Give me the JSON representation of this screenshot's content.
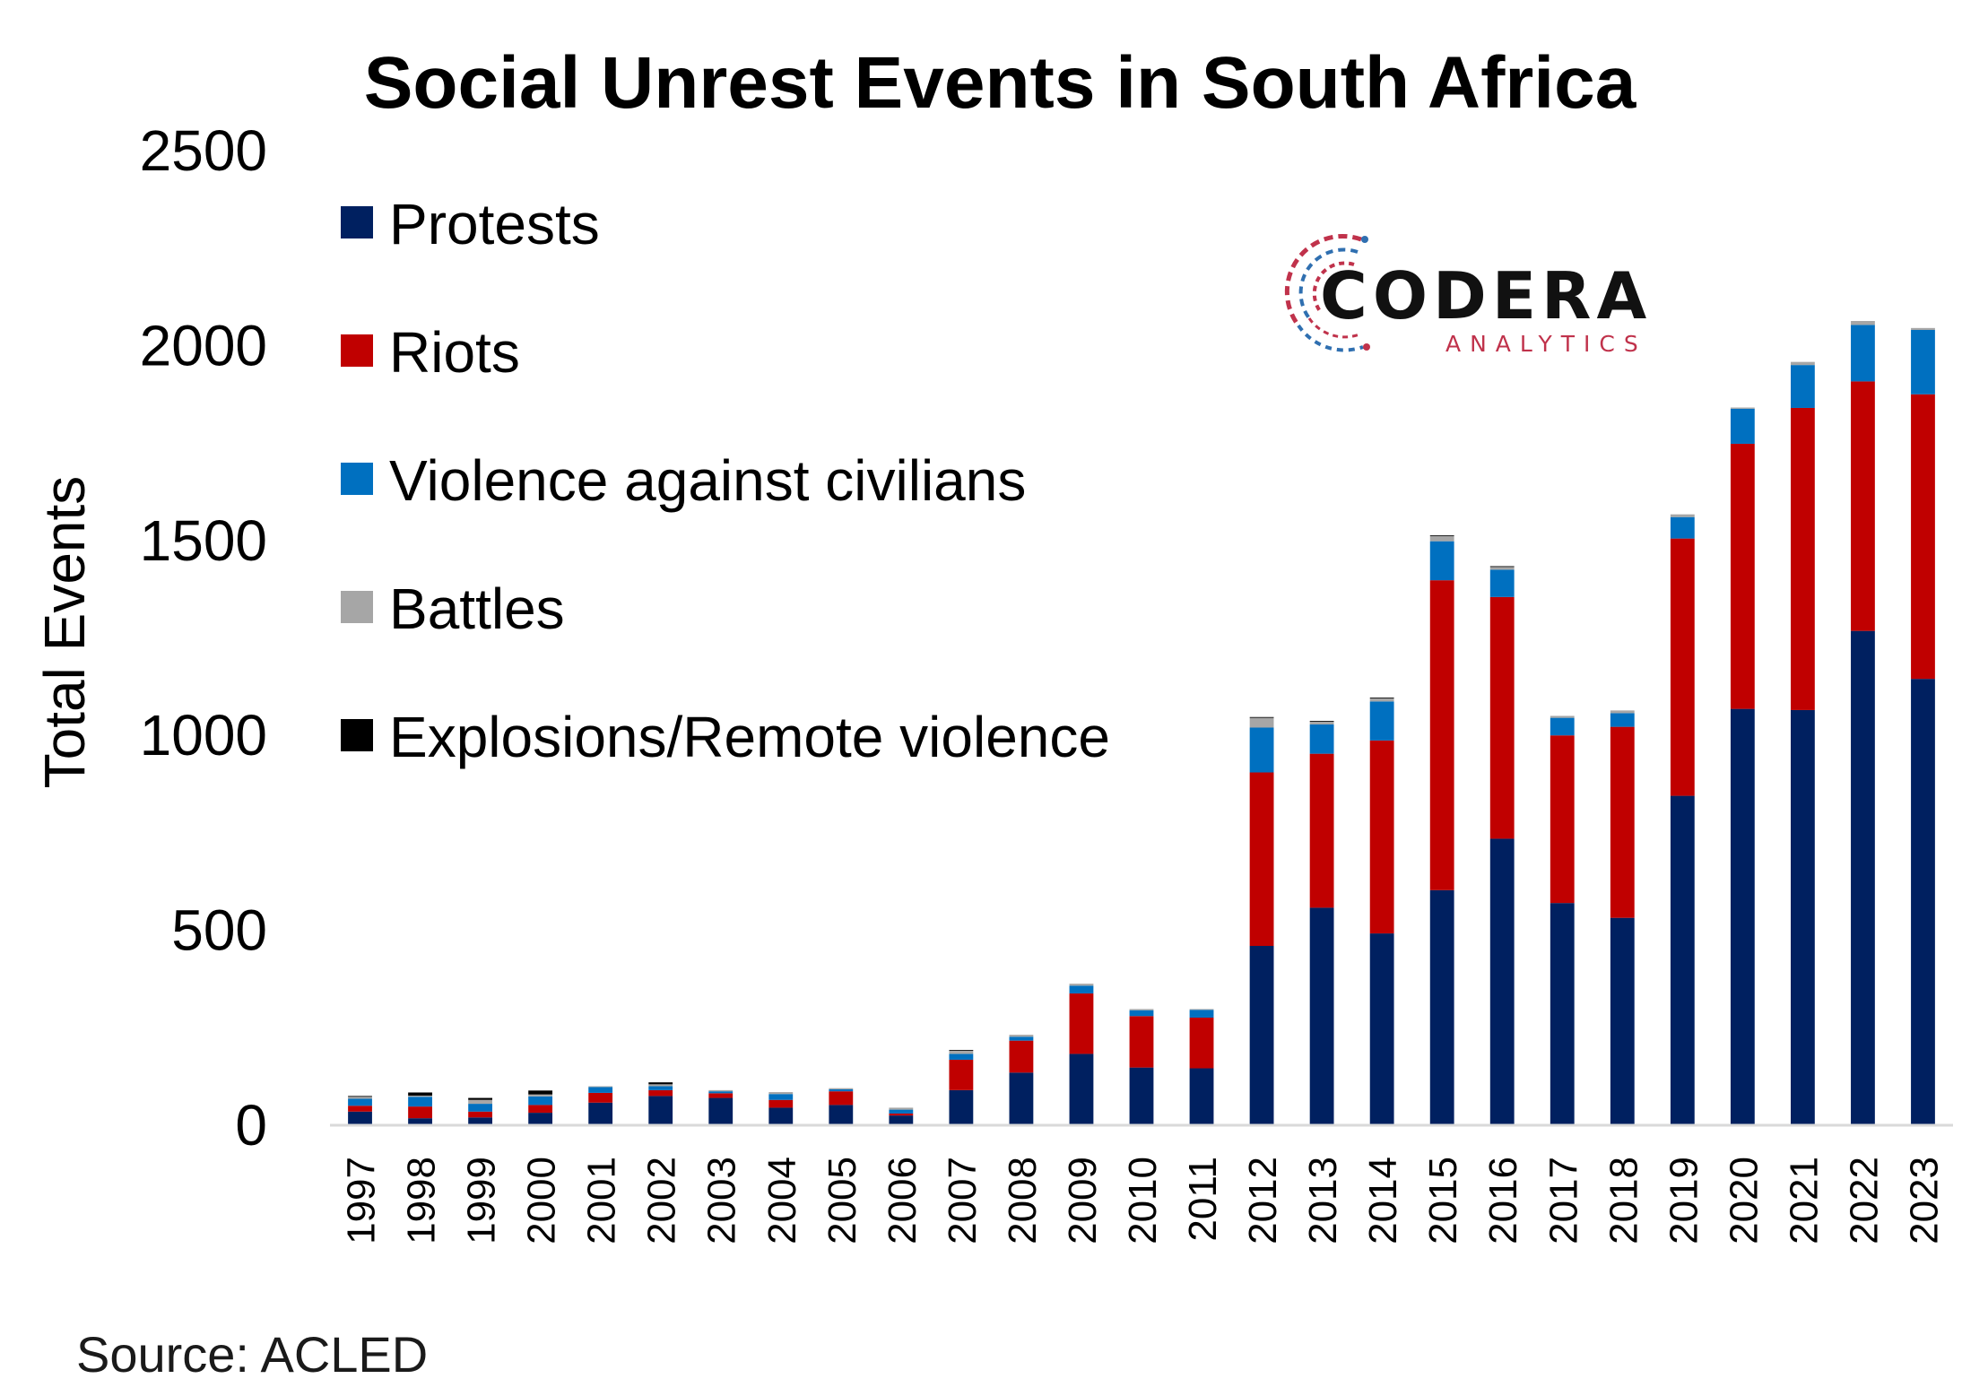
{
  "chart_data": {
    "type": "bar",
    "stacked": true,
    "title": "Social Unrest Events in South Africa",
    "ylabel": "Total Events",
    "xlabel": "",
    "ylim": [
      0,
      2500
    ],
    "yticks": [
      "0",
      "500",
      "1000",
      "1500",
      "2000",
      "2500"
    ],
    "ytick_values": [
      0,
      500,
      1000,
      1500,
      2000,
      2500
    ],
    "categories": [
      "1997",
      "1998",
      "1999",
      "2000",
      "2001",
      "2002",
      "2003",
      "2004",
      "2005",
      "2006",
      "2007",
      "2008",
      "2009",
      "2010",
      "2011",
      "2012",
      "2013",
      "2014",
      "2015",
      "2016",
      "2017",
      "2018",
      "2019",
      "2020",
      "2021",
      "2022",
      "2023"
    ],
    "series": [
      {
        "name": "Protests",
        "color": "#002060",
        "values": [
          35,
          18,
          20,
          32,
          58,
          75,
          70,
          45,
          52,
          25,
          90,
          135,
          183,
          148,
          146,
          460,
          558,
          492,
          603,
          735,
          570,
          532,
          845,
          1068,
          1065,
          1268,
          1145
        ]
      },
      {
        "name": "Riots",
        "color": "#C00000",
        "values": [
          15,
          30,
          15,
          20,
          25,
          15,
          12,
          20,
          35,
          5,
          78,
          82,
          155,
          132,
          130,
          445,
          395,
          495,
          795,
          620,
          430,
          490,
          660,
          680,
          775,
          640,
          730
        ]
      },
      {
        "name": "Violence against civilians",
        "color": "#0070C0",
        "values": [
          18,
          25,
          20,
          22,
          15,
          10,
          5,
          15,
          5,
          10,
          15,
          10,
          20,
          15,
          20,
          115,
          75,
          100,
          100,
          70,
          45,
          35,
          55,
          90,
          110,
          145,
          165
        ]
      },
      {
        "name": "Battles",
        "color": "#A6A6A6",
        "values": [
          5,
          3,
          10,
          5,
          2,
          5,
          3,
          5,
          3,
          5,
          8,
          5,
          5,
          3,
          2,
          25,
          7,
          8,
          13,
          7,
          5,
          7,
          7,
          3,
          8,
          10,
          5
        ]
      },
      {
        "name": "Explosions/Remote violence",
        "color": "#000000",
        "values": [
          2,
          8,
          5,
          10,
          0,
          5,
          0,
          0,
          0,
          0,
          2,
          0,
          0,
          0,
          0,
          2,
          2,
          2,
          2,
          2,
          0,
          0,
          0,
          0,
          0,
          0,
          0
        ]
      }
    ],
    "legend": {
      "placement": "top-left"
    },
    "grid": false,
    "source": "Source: ACLED"
  },
  "logo": {
    "name": "CODERA",
    "tagline": "ANALYTICS",
    "icon": "codera-swirl-icon",
    "tagline_color": "#C0324B",
    "tagline_color_alt": "#2F6FB0"
  }
}
